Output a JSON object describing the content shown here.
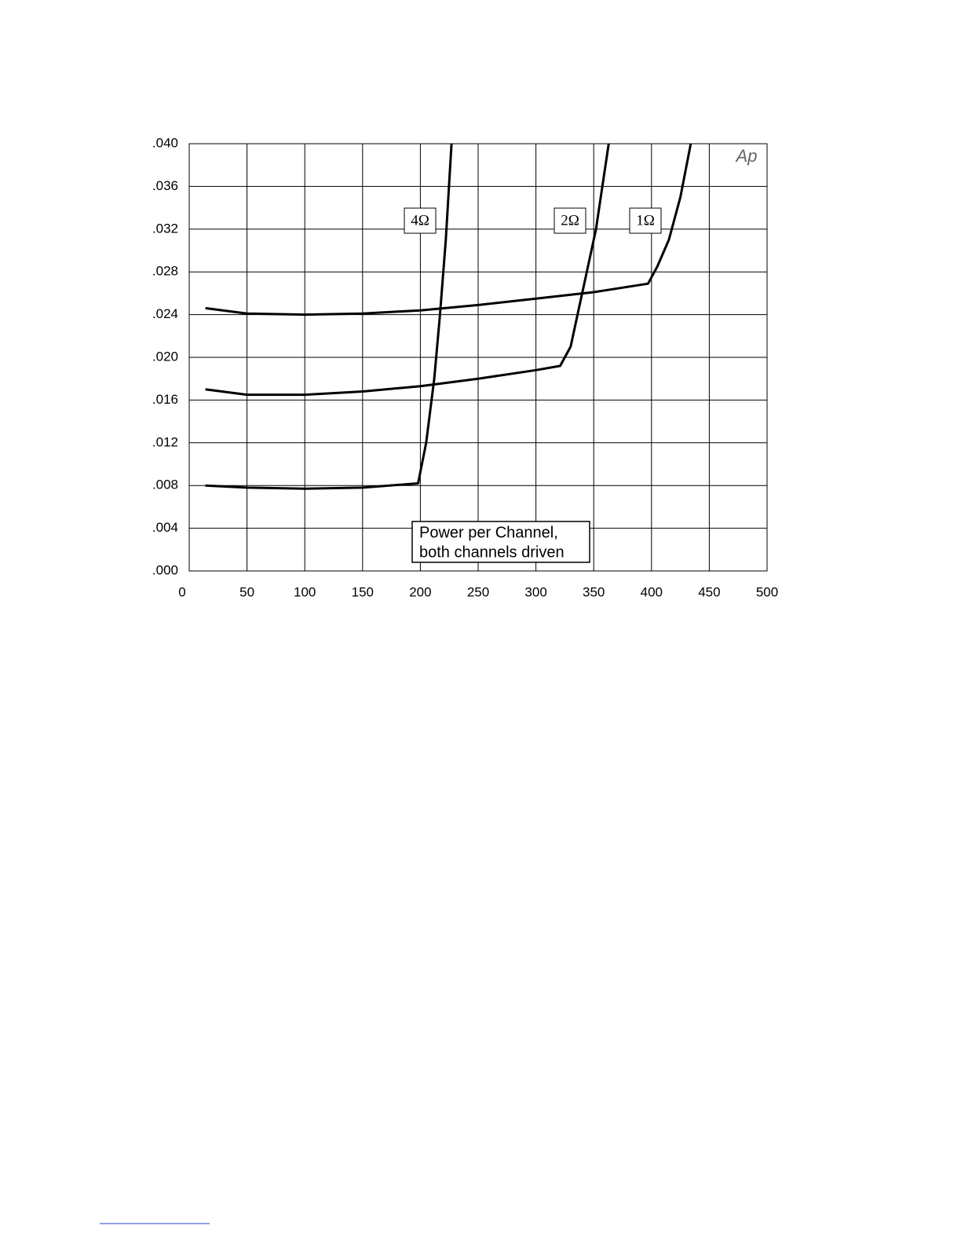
{
  "chart_data": {
    "type": "line",
    "logo": "Ap",
    "annotation": [
      "Power per Channel,",
      "both channels driven"
    ],
    "series": [
      {
        "name": "4Ω",
        "color": "#000000",
        "x": [
          14,
          50,
          100,
          150,
          198,
          205,
          212,
          217,
          222,
          227
        ],
        "values": [
          0.008,
          0.0078,
          0.0077,
          0.0078,
          0.0082,
          0.012,
          0.018,
          0.024,
          0.031,
          0.04
        ]
      },
      {
        "name": "2Ω",
        "color": "#000000",
        "x": [
          14,
          50,
          100,
          150,
          200,
          250,
          300,
          321,
          330,
          336,
          344,
          352,
          363
        ],
        "values": [
          0.017,
          0.0165,
          0.0165,
          0.0168,
          0.0173,
          0.018,
          0.0188,
          0.0192,
          0.021,
          0.024,
          0.028,
          0.032,
          0.04
        ]
      },
      {
        "name": "1Ω",
        "color": "#000000",
        "x": [
          14,
          50,
          100,
          150,
          200,
          250,
          300,
          350,
          397,
          405,
          415,
          425,
          434
        ],
        "values": [
          0.0246,
          0.0241,
          0.024,
          0.0241,
          0.0244,
          0.0249,
          0.0255,
          0.0261,
          0.0269,
          0.0285,
          0.031,
          0.035,
          0.04
        ]
      }
    ],
    "xlim": [
      0,
      500
    ],
    "xticks": [
      0,
      50,
      100,
      150,
      200,
      250,
      300,
      350,
      400,
      450,
      500
    ],
    "ylim": [
      0,
      0.04
    ],
    "yticks": [
      {
        "value": 0,
        "label": ".000"
      },
      {
        "value": 0.004,
        "label": ".004"
      },
      {
        "value": 0.008,
        "label": ".008"
      },
      {
        "value": 0.012,
        "label": ".012"
      },
      {
        "value": 0.016,
        "label": ".016"
      },
      {
        "value": 0.02,
        "label": ".020"
      },
      {
        "value": 0.024,
        "label": ".024"
      },
      {
        "value": 0.028,
        "label": ".028"
      },
      {
        "value": 0.032,
        "label": ".032"
      },
      {
        "value": 0.036,
        "label": ".036"
      },
      {
        "value": 0.04,
        "label": ".040"
      }
    ],
    "grid": true
  }
}
